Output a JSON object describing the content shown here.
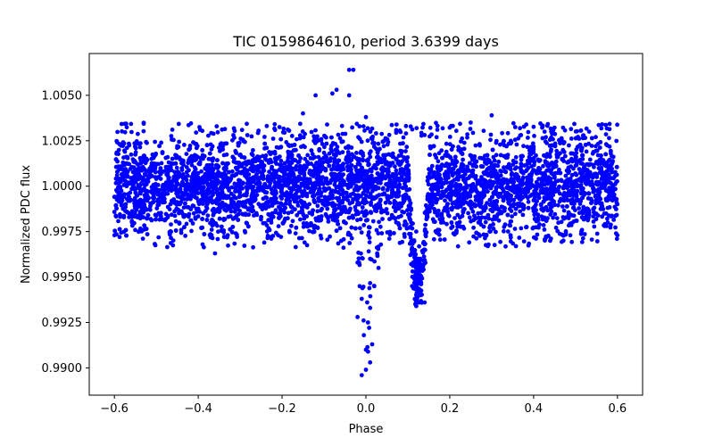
{
  "chart_data": {
    "type": "scatter",
    "title": "TIC 0159864610, period 3.6399 days",
    "xlabel": "Phase",
    "ylabel": "Normalized PDC flux",
    "xlim": [
      -0.66,
      0.66
    ],
    "ylim": [
      0.9885,
      1.0073
    ],
    "xticks": [
      -0.6,
      -0.4,
      -0.2,
      0.0,
      0.2,
      0.4,
      0.6
    ],
    "xtick_labels": [
      "−0.6",
      "−0.4",
      "−0.2",
      "0.0",
      "0.2",
      "0.4",
      "0.6"
    ],
    "yticks": [
      0.99,
      0.9925,
      0.995,
      0.9975,
      1.0,
      1.0025,
      1.005
    ],
    "ytick_labels": [
      "0.9900",
      "0.9925",
      "0.9950",
      "0.9975",
      "1.0000",
      "1.0025",
      "1.0050"
    ],
    "grid": false,
    "marker_color": "#0000ff",
    "series": [
      {
        "baseline_phase_range": [
          -0.6,
          0.6
        ],
        "baseline_flux_band": [
          0.9972,
          1.0027
        ],
        "baseline_center": 1.0,
        "transit": {
          "phase_center": 0.125,
          "phase_half_width": 0.025,
          "min_flux": 0.9934
        },
        "secondary_dip": {
          "phase_center": 0.005,
          "phase_half_width": 0.025,
          "min_flux": 0.9895
        },
        "sampled_points": [
          {
            "x": -0.04,
            "y": 1.0064
          },
          {
            "x": -0.03,
            "y": 1.0064
          },
          {
            "x": -0.07,
            "y": 1.0053
          },
          {
            "x": -0.12,
            "y": 1.005
          },
          {
            "x": -0.08,
            "y": 1.0051
          },
          {
            "x": -0.04,
            "y": 1.005
          },
          {
            "x": -0.15,
            "y": 1.004
          },
          {
            "x": -0.6,
            "y": 0.9973
          },
          {
            "x": 0.6,
            "y": 0.9973
          },
          {
            "x": -0.36,
            "y": 0.9963
          },
          {
            "x": 0.06,
            "y": 1.0003
          },
          {
            "x": -0.45,
            "y": 1.0022
          },
          {
            "x": 0.3,
            "y": 1.0039
          },
          {
            "x": 0.25,
            "y": 1.0035
          },
          {
            "x": 0.0,
            "y": 1.0038
          },
          {
            "x": 0.12,
            "y": 0.9934
          },
          {
            "x": 0.13,
            "y": 0.994
          },
          {
            "x": 0.11,
            "y": 0.9945
          },
          {
            "x": 0.14,
            "y": 0.9936
          },
          {
            "x": 0.12,
            "y": 0.9955
          },
          {
            "x": 0.13,
            "y": 0.996
          },
          {
            "x": 0.11,
            "y": 0.9966
          },
          {
            "x": 0.14,
            "y": 0.9968
          },
          {
            "x": 0.12,
            "y": 0.9975
          },
          {
            "x": -0.01,
            "y": 0.9896
          },
          {
            "x": 0.0,
            "y": 0.9899
          },
          {
            "x": 0.01,
            "y": 0.9903
          },
          {
            "x": 0.0,
            "y": 0.991
          },
          {
            "x": -0.005,
            "y": 0.9918
          },
          {
            "x": 0.005,
            "y": 0.9925
          },
          {
            "x": 0.01,
            "y": 0.9933
          },
          {
            "x": -0.01,
            "y": 0.9938
          },
          {
            "x": 0.02,
            "y": 0.9945
          },
          {
            "x": 0.03,
            "y": 0.9955
          },
          {
            "x": -0.02,
            "y": 0.9958
          },
          {
            "x": -0.015,
            "y": 0.9945
          },
          {
            "x": 0.015,
            "y": 0.9913
          },
          {
            "x": -0.02,
            "y": 0.9928
          }
        ]
      }
    ]
  }
}
